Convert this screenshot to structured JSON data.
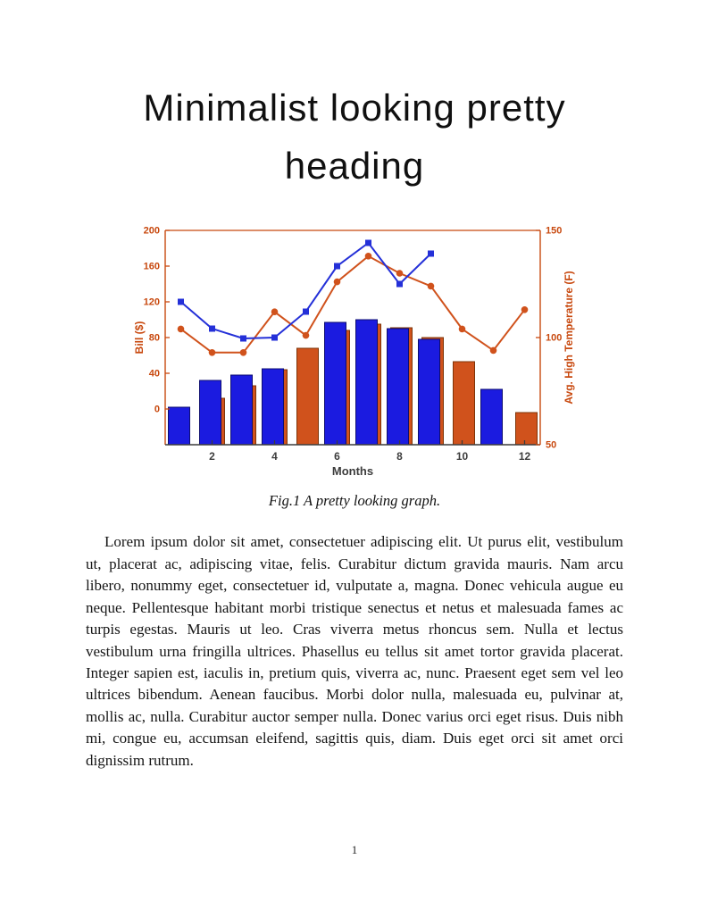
{
  "document": {
    "heading": "Minimalist looking pretty heading",
    "figure_caption": "Fig.1 A pretty looking graph.",
    "body_paragraph": "Lorem ipsum dolor sit amet, consectetuer adipiscing elit. Ut purus elit, vestibulum ut, placerat ac, adipiscing vitae, felis. Curabitur dictum gravida mauris. Nam arcu libero, nonummy eget, consectetuer id, vulputate a, magna. Donec vehicula augue eu neque. Pellentesque habitant morbi tristique senectus et netus et malesuada fames ac turpis egestas. Mauris ut leo. Cras viverra metus rhoncus sem. Nulla et lectus vestibulum urna fringilla ultrices. Phasellus eu tellus sit amet tortor gravida placerat. Integer sapien est, iaculis in, pretium quis, viverra ac, nunc. Praesent eget sem vel leo ultrices bibendum. Aenean faucibus. Morbi dolor nulla, malesuada eu, pulvinar at, mollis ac, nulla. Curabitur auctor semper nulla. Donec varius orci eget risus. Duis nibh mi, congue eu, accumsan eleifend, sagittis quis, diam. Duis eget orci sit amet orci dignissim rutrum.",
    "page_number": "1"
  },
  "chart_data": {
    "type": "bar",
    "subtype": "dual-axis grouped bars with two line series",
    "title": "",
    "xlabel": "Months",
    "grid": false,
    "legend": "none",
    "months": [
      1,
      2,
      3,
      4,
      5,
      6,
      7,
      8,
      9,
      10,
      11,
      12
    ],
    "x_ticks": [
      2,
      4,
      6,
      8,
      10,
      12
    ],
    "left_axis": {
      "label": "Bill ($)",
      "min": -40,
      "max": 200,
      "ticks": [
        0,
        40,
        80,
        120,
        160,
        200
      ]
    },
    "right_axis": {
      "label": "Avg. High Temperature (F)",
      "min": 50,
      "max": 150,
      "ticks": [
        50,
        100,
        150
      ]
    },
    "bar_baseline": "plot-bottom",
    "colors": {
      "axis_orange": "#c8490f",
      "axis_dark": "#3c3c3c",
      "bar_blue": "#1b1be0",
      "bar_orange": "#d0521c",
      "line_blue": "#2430d8",
      "line_orange": "#d0521c"
    },
    "series": [
      {
        "name": "monthly-bill-bars",
        "type": "bar",
        "axis": "left",
        "color": "#1b1be0",
        "edge": "#0d0d70",
        "values": [
          2,
          32,
          38,
          45,
          null,
          97,
          100,
          90,
          78,
          null,
          22,
          null
        ]
      },
      {
        "name": "monthly-temp-bars",
        "type": "bar",
        "axis": "left",
        "color": "#d0521c",
        "edge": "#7e3408",
        "values": [
          null,
          12,
          26,
          44,
          68,
          88,
          95,
          91,
          80,
          53,
          null,
          -4
        ]
      },
      {
        "name": "bill-line",
        "type": "line",
        "axis": "left",
        "marker": "square",
        "color": "#2430d8",
        "x": [
          1,
          2,
          3,
          4,
          5,
          6,
          7,
          8,
          9
        ],
        "values": [
          120,
          90,
          79,
          80,
          109,
          160,
          186,
          140,
          174
        ]
      },
      {
        "name": "temp-line",
        "type": "line",
        "axis": "right",
        "marker": "circle",
        "color": "#d0521c",
        "x": [
          1,
          2,
          3,
          4,
          5,
          6,
          7,
          8,
          9,
          10,
          11,
          12
        ],
        "values": [
          104,
          93,
          93,
          112,
          101,
          126,
          138,
          130,
          124,
          104,
          94,
          113
        ]
      }
    ]
  }
}
